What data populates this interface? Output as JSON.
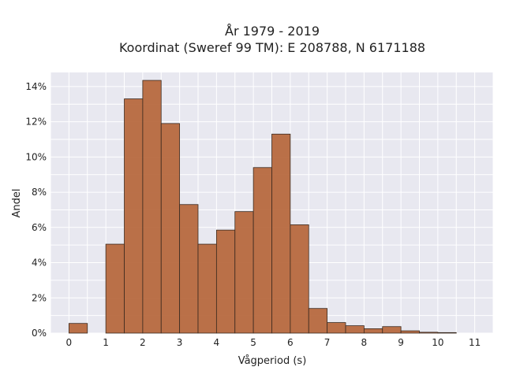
{
  "chart_data": {
    "type": "bar",
    "title_lines": [
      "År 1979 - 2019",
      "Koordinat (Sweref 99 TM): E 208788, N 6171188"
    ],
    "xlabel": "Vågperiod (s)",
    "ylabel": "Andel",
    "xlim": [
      -0.5,
      11.5
    ],
    "ylim": [
      0,
      14.8
    ],
    "x_ticks": [
      0,
      1,
      2,
      3,
      4,
      5,
      6,
      7,
      8,
      9,
      10,
      11
    ],
    "y_ticks": [
      0,
      2,
      4,
      6,
      8,
      10,
      12,
      14
    ],
    "y_tick_suffix": "%",
    "grid": true,
    "bin_width": 0.5,
    "bins": [
      {
        "start": 0.0,
        "value": 0.55
      },
      {
        "start": 0.5,
        "value": 0.0
      },
      {
        "start": 1.0,
        "value": 5.05
      },
      {
        "start": 1.5,
        "value": 13.3
      },
      {
        "start": 2.0,
        "value": 14.35
      },
      {
        "start": 2.5,
        "value": 11.9
      },
      {
        "start": 3.0,
        "value": 7.3
      },
      {
        "start": 3.5,
        "value": 5.05
      },
      {
        "start": 4.0,
        "value": 5.85
      },
      {
        "start": 4.5,
        "value": 6.9
      },
      {
        "start": 5.0,
        "value": 9.4
      },
      {
        "start": 5.5,
        "value": 11.3
      },
      {
        "start": 6.0,
        "value": 6.15
      },
      {
        "start": 6.5,
        "value": 1.4
      },
      {
        "start": 7.0,
        "value": 0.6
      },
      {
        "start": 7.5,
        "value": 0.42
      },
      {
        "start": 8.0,
        "value": 0.25
      },
      {
        "start": 8.5,
        "value": 0.37
      },
      {
        "start": 9.0,
        "value": 0.13
      },
      {
        "start": 9.5,
        "value": 0.05
      },
      {
        "start": 10.0,
        "value": 0.03
      }
    ],
    "colors": {
      "bar_fill": "#b5653a",
      "bar_stroke": "#3a2a20",
      "plot_background": "#e8e8f0",
      "grid": "#ffffff"
    }
  }
}
